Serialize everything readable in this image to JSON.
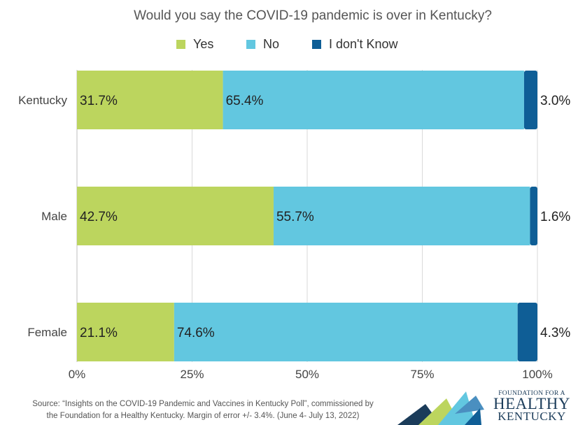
{
  "chart_data": {
    "type": "bar",
    "orientation": "horizontal",
    "stacked": true,
    "title": "Would you say the COVID-19 pandemic is over in Kentucky?",
    "categories": [
      "Kentucky",
      "Male",
      "Female"
    ],
    "series": [
      {
        "name": "Yes",
        "color": "#bcd55e",
        "values": [
          31.7,
          42.7,
          21.1
        ],
        "labels": [
          "31.7%",
          "42.7%",
          "21.1%"
        ]
      },
      {
        "name": "No",
        "color": "#62c7e0",
        "values": [
          65.4,
          55.7,
          74.6
        ],
        "labels": [
          "65.4%",
          "55.7%",
          "74.6%"
        ]
      },
      {
        "name": "I don't Know",
        "color": "#0f5e96",
        "values": [
          3.0,
          1.6,
          4.3
        ],
        "labels": [
          "3.0%",
          "1.6%",
          "4.3%"
        ]
      }
    ],
    "xlim": [
      0,
      100
    ],
    "x_ticks": [
      "0%",
      "25%",
      "50%",
      "75%",
      "100%"
    ],
    "grid": "vertical",
    "legend_position": "top"
  },
  "source": {
    "line1": "Source: “Insights on the COVID-19 Pandemic and Vaccines in Kentucky Poll”, commissioned by",
    "line2": "the Foundation for a Healthy Kentucky. Margin of error +/- 3.4%. (June 4- July 13, 2022)"
  },
  "logo": {
    "line1": "FOUNDATION FOR A",
    "line2": "HEALTHY",
    "line3": "KENTUCKY",
    "colors": [
      "#1b3c5a",
      "#62c7e0",
      "#bcd55e",
      "#0f5e96",
      "#4a8fc0"
    ]
  }
}
